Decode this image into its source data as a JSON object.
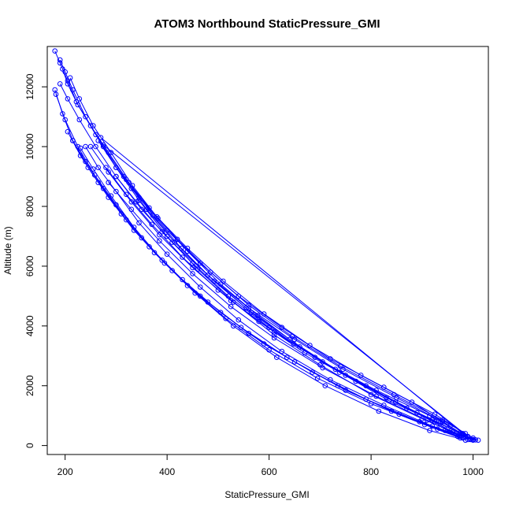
{
  "chart_data": {
    "type": "scatter",
    "title": "ATOM3 Northbound StaticPressure_GMI",
    "xlabel": "StaticPressure_GMI",
    "ylabel": "Altitude (m)",
    "xlim": [
      165,
      1030
    ],
    "ylim": [
      -300,
      13350
    ],
    "x_ticks": [
      200,
      400,
      600,
      800,
      1000
    ],
    "y_ticks": [
      0,
      2000,
      4000,
      6000,
      8000,
      10000,
      12000
    ],
    "x_tick_labels": [
      "200",
      "400",
      "600",
      "800",
      "1000"
    ],
    "y_tick_labels": [
      "0",
      "2000",
      "4000",
      "6000",
      "8000",
      "10000",
      "12000"
    ],
    "grid": false,
    "legend": "none",
    "series_color": "#0000ff",
    "marker": "open-circle",
    "series": [
      {
        "x": [
          180,
          190,
          205,
          225,
          260,
          300,
          345,
          400,
          460,
          530,
          610,
          700,
          800,
          900,
          960,
          1010
        ],
        "y": [
          13200,
          12800,
          12200,
          11400,
          10400,
          9300,
          8200,
          7000,
          5900,
          4800,
          3700,
          2700,
          1700,
          900,
          450,
          180
        ]
      },
      {
        "x": [
          190,
          200,
          215,
          240,
          275,
          315,
          360,
          415,
          480,
          555,
          640,
          730,
          830,
          920,
          975,
          1005
        ],
        "y": [
          12900,
          12500,
          11900,
          11000,
          10000,
          9000,
          7900,
          6800,
          5700,
          4600,
          3550,
          2550,
          1600,
          850,
          420,
          190
        ]
      },
      {
        "x": [
          195,
          205,
          222,
          250,
          285,
          325,
          372,
          428,
          492,
          565,
          648,
          738,
          835,
          925,
          978,
          1000
        ],
        "y": [
          12600,
          12100,
          11500,
          10700,
          9800,
          8800,
          7700,
          6600,
          5500,
          4450,
          3400,
          2450,
          1500,
          800,
          400,
          200
        ]
      },
      {
        "x": [
          210,
          228,
          255,
          290,
          332,
          382,
          440,
          505,
          578,
          660,
          750,
          848,
          935,
          985
        ],
        "y": [
          12300,
          11600,
          10700,
          9800,
          8700,
          7600,
          6500,
          5400,
          4350,
          3300,
          2350,
          1450,
          750,
          300
        ]
      },
      {
        "x": [
          180,
          195,
          215,
          245,
          285,
          335,
          395,
          465,
          545,
          635,
          735,
          840,
          930,
          990
        ],
        "y": [
          11900,
          11100,
          10200,
          9300,
          8300,
          7200,
          6100,
          5000,
          3950,
          2950,
          2000,
          1150,
          550,
          200
        ]
      },
      {
        "x": [
          182,
          200,
          225,
          258,
          300,
          350,
          410,
          480,
          560,
          650,
          750,
          855,
          945,
          1000
        ],
        "y": [
          11750,
          10900,
          10000,
          9050,
          8050,
          6950,
          5850,
          4800,
          3750,
          2800,
          1850,
          1050,
          500,
          190
        ]
      },
      {
        "x": [
          205,
          230,
          265,
          310,
          365,
          430,
          505,
          590,
          685,
          790,
          895,
          970
        ],
        "y": [
          10500,
          9700,
          8800,
          7750,
          6650,
          5550,
          4450,
          3400,
          2450,
          1550,
          800,
          300
        ]
      },
      {
        "x": [
          215,
          240,
          275,
          320,
          375,
          440,
          515,
          600,
          695,
          800,
          905,
          975
        ],
        "y": [
          10200,
          9500,
          8600,
          7550,
          6450,
          5350,
          4250,
          3200,
          2250,
          1400,
          700,
          250
        ]
      },
      {
        "x": [
          240,
          265,
          300,
          345,
          400,
          465,
          540,
          625,
          720,
          825,
          920,
          980
        ],
        "y": [
          10000,
          9300,
          8500,
          7450,
          6400,
          5300,
          4200,
          3150,
          2200,
          1350,
          650,
          250
        ]
      },
      {
        "x": [
          265,
          300,
          345,
          400,
          465,
          540,
          625,
          720,
          825,
          925,
          985
        ],
        "y": [
          10200,
          9300,
          8300,
          7200,
          6100,
          5000,
          3950,
          2900,
          1950,
          1050,
          400
        ]
      },
      {
        "x": [
          250,
          285,
          330,
          385,
          450,
          525,
          610,
          705,
          810,
          915,
          980
        ],
        "y": [
          10000,
          9150,
          8150,
          7050,
          5950,
          4850,
          3800,
          2800,
          1850,
          1000,
          380
        ]
      },
      {
        "x": [
          280,
          320,
          370,
          430,
          500,
          580,
          670,
          770,
          870,
          950,
          995
        ],
        "y": [
          9300,
          8400,
          7400,
          6300,
          5200,
          4150,
          3100,
          2150,
          1250,
          550,
          200
        ]
      },
      {
        "x": [
          300,
          340,
          390,
          450,
          520,
          600,
          690,
          790,
          890,
          960,
          1000
        ],
        "y": [
          9000,
          8150,
          7150,
          6100,
          5000,
          3950,
          2950,
          2000,
          1100,
          450,
          180
        ]
      },
      {
        "x": [
          285,
          330,
          385,
          450,
          525,
          610,
          705,
          810,
          910,
          975
        ],
        "y": [
          8800,
          7900,
          6850,
          5750,
          4650,
          3600,
          2600,
          1650,
          850,
          300
        ]
      },
      {
        "x": [
          270,
          980
        ],
        "y": [
          10300,
          400
        ]
      },
      {
        "x": [
          275,
          990
        ],
        "y": [
          10050,
          300
        ]
      },
      {
        "x": [
          230,
          255,
          290,
          335,
          390,
          455,
          530,
          615,
          710,
          815,
          915,
          985
        ],
        "y": [
          9950,
          9250,
          8350,
          7300,
          6200,
          5100,
          4000,
          2950,
          2000,
          1150,
          500,
          180
        ]
      },
      {
        "x": [
          320,
          365,
          420,
          485,
          560,
          645,
          740,
          845,
          940,
          1000
        ],
        "y": [
          8900,
          7950,
          6900,
          5800,
          4700,
          3650,
          2650,
          1700,
          850,
          250
        ]
      },
      {
        "x": [
          330,
          380,
          440,
          510,
          590,
          680,
          780,
          880,
          955
        ],
        "y": [
          8600,
          7650,
          6600,
          5500,
          4400,
          3350,
          2350,
          1450,
          650
        ]
      },
      {
        "x": [
          190,
          205,
          228,
          260,
          300,
          350,
          410,
          480,
          560,
          650,
          745,
          850,
          940,
          995
        ],
        "y": [
          12100,
          11600,
          10900,
          10000,
          9000,
          7900,
          6800,
          5700,
          4600,
          3550,
          2550,
          1600,
          800,
          220
        ]
      }
    ]
  }
}
